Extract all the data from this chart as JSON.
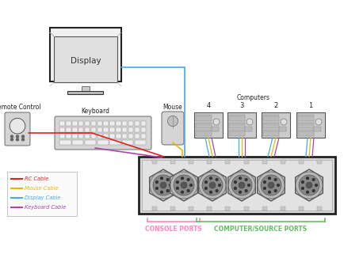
{
  "bg_color": "#ffffff",
  "legend_items": [
    {
      "color": "#dd2222",
      "label": "RC Cable"
    },
    {
      "color": "#e8b800",
      "label": "Mouse Cable"
    },
    {
      "color": "#44aaee",
      "label": "Display Cable"
    },
    {
      "color": "#aa44aa",
      "label": "Keyboard Cable"
    }
  ],
  "console_ports_text": "CONSOLE PORTS",
  "console_ports_color": "#ff88bb",
  "computer_ports_text": "COMPUTER/SOURCE PORTS",
  "computer_ports_color": "#66bb66",
  "port_numbers": [
    "4",
    "3",
    "2",
    "1"
  ],
  "computers_label": "Computers",
  "remote_label": "Remote Control",
  "keyboard_label": "Keyboard",
  "mouse_label": "Mouse",
  "display_label": "Display"
}
